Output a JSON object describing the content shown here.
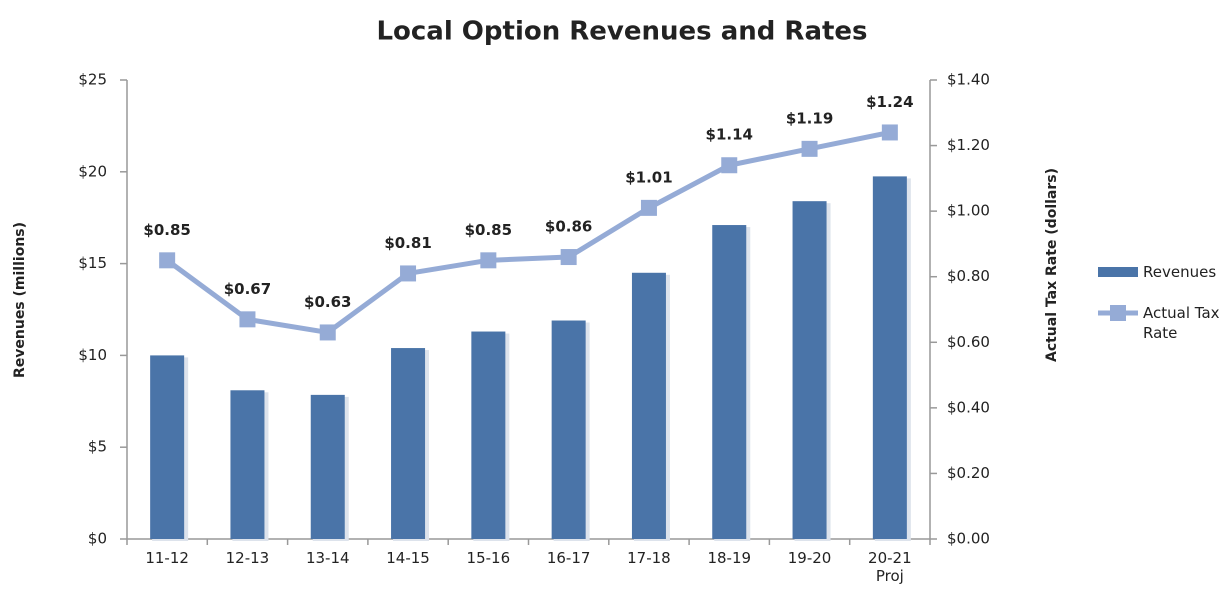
{
  "chart_data": {
    "type": "bar-line",
    "title": "Local Option Revenues and Rates",
    "categories": [
      "11-12",
      "12-13",
      "13-14",
      "14-15",
      "15-16",
      "16-17",
      "17-18",
      "18-19",
      "19-20",
      "20-21 Proj"
    ],
    "ylabel": "Revenues (millions)",
    "y2label": "Actual Tax Rate (dollars)",
    "series": [
      {
        "name": "Revenues",
        "type": "bar",
        "axis": "y",
        "color": "#4a74a8",
        "values": [
          10.0,
          8.1,
          7.85,
          10.4,
          11.3,
          11.9,
          14.5,
          17.1,
          18.4,
          19.75
        ]
      },
      {
        "name": "Actual Tax Rate",
        "type": "line",
        "axis": "y2",
        "color": "#95abd6",
        "values": [
          0.85,
          0.67,
          0.63,
          0.81,
          0.85,
          0.86,
          1.01,
          1.14,
          1.19,
          1.24
        ],
        "value_labels": [
          "$0.85",
          "$0.67",
          "$0.63",
          "$0.81",
          "$0.85",
          "$0.86",
          "$1.01",
          "$1.14",
          "$1.19",
          "$1.24"
        ]
      }
    ],
    "ylim": [
      0,
      25
    ],
    "yticks": [
      {
        "value": 0,
        "label": "$0"
      },
      {
        "value": 5,
        "label": "$5"
      },
      {
        "value": 10,
        "label": "$10"
      },
      {
        "value": 15,
        "label": "$15"
      },
      {
        "value": 20,
        "label": "$20"
      },
      {
        "value": 25,
        "label": "$25"
      }
    ],
    "y2lim": [
      0,
      1.4
    ],
    "y2ticks": [
      {
        "value": 0,
        "label": "$0.00"
      },
      {
        "value": 0.2,
        "label": "$0.20"
      },
      {
        "value": 0.4,
        "label": "$0.40"
      },
      {
        "value": 0.6,
        "label": "$0.60"
      },
      {
        "value": 0.8,
        "label": "$0.80"
      },
      {
        "value": 1.0,
        "label": "$1.00"
      },
      {
        "value": 1.2,
        "label": "$1.20"
      },
      {
        "value": 1.4,
        "label": "$1.40"
      }
    ],
    "grid": false,
    "legend": "right"
  }
}
